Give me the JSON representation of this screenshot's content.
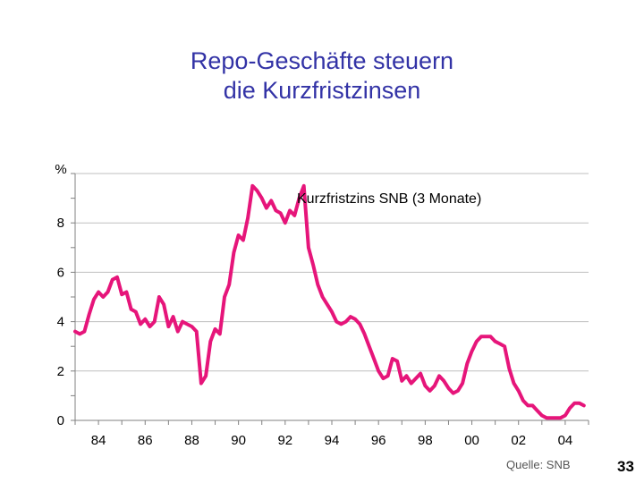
{
  "title_line1": "Repo-Geschäfte steuern",
  "title_line2": "die Kurzfristzinsen",
  "source": "Quelle: SNB",
  "page_number": "33",
  "colors": {
    "series": "#e6157a",
    "title": "#3333a6",
    "axis": "#808080"
  },
  "chart_data": {
    "type": "line",
    "title": "Repo-Geschäfte steuern die Kurzfristzinsen",
    "ylabel": "%",
    "ylim": [
      0,
      10
    ],
    "xlim": [
      1983,
      2005
    ],
    "y_ticks": [
      0,
      2,
      4,
      6,
      8
    ],
    "x_ticks": [
      {
        "value": 1984,
        "label": "84"
      },
      {
        "value": 1986,
        "label": "86"
      },
      {
        "value": 1988,
        "label": "88"
      },
      {
        "value": 1990,
        "label": "90"
      },
      {
        "value": 1992,
        "label": "92"
      },
      {
        "value": 1994,
        "label": "94"
      },
      {
        "value": 1996,
        "label": "96"
      },
      {
        "value": 1998,
        "label": "98"
      },
      {
        "value": 2000,
        "label": "00"
      },
      {
        "value": 2002,
        "label": "02"
      },
      {
        "value": 2004,
        "label": "04"
      }
    ],
    "series": [
      {
        "name": "Kurzfristzins SNB (3 Monate)",
        "x": [
          1983.0,
          1983.2,
          1983.4,
          1983.6,
          1983.8,
          1984.0,
          1984.2,
          1984.4,
          1984.6,
          1984.8,
          1985.0,
          1985.2,
          1985.4,
          1985.6,
          1985.8,
          1986.0,
          1986.2,
          1986.4,
          1986.6,
          1986.8,
          1987.0,
          1987.2,
          1987.4,
          1987.6,
          1987.8,
          1988.0,
          1988.2,
          1988.4,
          1988.6,
          1988.8,
          1989.0,
          1989.2,
          1989.4,
          1989.6,
          1989.8,
          1990.0,
          1990.2,
          1990.4,
          1990.6,
          1990.8,
          1991.0,
          1991.2,
          1991.4,
          1991.6,
          1991.8,
          1992.0,
          1992.2,
          1992.4,
          1992.6,
          1992.8,
          1993.0,
          1993.2,
          1993.4,
          1993.6,
          1993.8,
          1994.0,
          1994.2,
          1994.4,
          1994.6,
          1994.8,
          1995.0,
          1995.2,
          1995.4,
          1995.6,
          1995.8,
          1996.0,
          1996.2,
          1996.4,
          1996.6,
          1996.8,
          1997.0,
          1997.2,
          1997.4,
          1997.6,
          1997.8,
          1998.0,
          1998.2,
          1998.4,
          1998.6,
          1998.8,
          1999.0,
          1999.2,
          1999.4,
          1999.6,
          1999.8,
          2000.0,
          2000.2,
          2000.4,
          2000.6,
          2000.8,
          2001.0,
          2001.2,
          2001.4,
          2001.6,
          2001.8,
          2002.0,
          2002.2,
          2002.4,
          2002.6,
          2002.8,
          2003.0,
          2003.2,
          2003.4,
          2003.6,
          2003.8,
          2004.0,
          2004.2,
          2004.4,
          2004.6,
          2004.8
        ],
        "values": [
          3.6,
          3.5,
          3.6,
          4.3,
          4.9,
          5.2,
          5.0,
          5.2,
          5.7,
          5.8,
          5.1,
          5.2,
          4.5,
          4.4,
          3.9,
          4.1,
          3.8,
          4.0,
          5.0,
          4.7,
          3.8,
          4.2,
          3.6,
          4.0,
          3.9,
          3.8,
          3.6,
          1.5,
          1.8,
          3.2,
          3.7,
          3.5,
          5.0,
          5.5,
          6.8,
          7.5,
          7.3,
          8.2,
          9.5,
          9.3,
          9.0,
          8.6,
          8.9,
          8.5,
          8.4,
          8.0,
          8.5,
          8.3,
          9.0,
          9.5,
          7.0,
          6.3,
          5.5,
          5.0,
          4.7,
          4.4,
          4.0,
          3.9,
          4.0,
          4.2,
          4.1,
          3.9,
          3.5,
          3.0,
          2.5,
          2.0,
          1.7,
          1.8,
          2.5,
          2.4,
          1.6,
          1.8,
          1.5,
          1.7,
          1.9,
          1.4,
          1.2,
          1.4,
          1.8,
          1.6,
          1.3,
          1.1,
          1.2,
          1.5,
          2.3,
          2.8,
          3.2,
          3.4,
          3.4,
          3.4,
          3.2,
          3.1,
          3.0,
          2.1,
          1.5,
          1.2,
          0.8,
          0.6,
          0.6,
          0.4,
          0.2,
          0.1,
          0.1,
          0.1,
          0.1,
          0.2,
          0.5,
          0.7,
          0.7,
          0.6
        ],
        "color": "#e6157a"
      }
    ]
  }
}
